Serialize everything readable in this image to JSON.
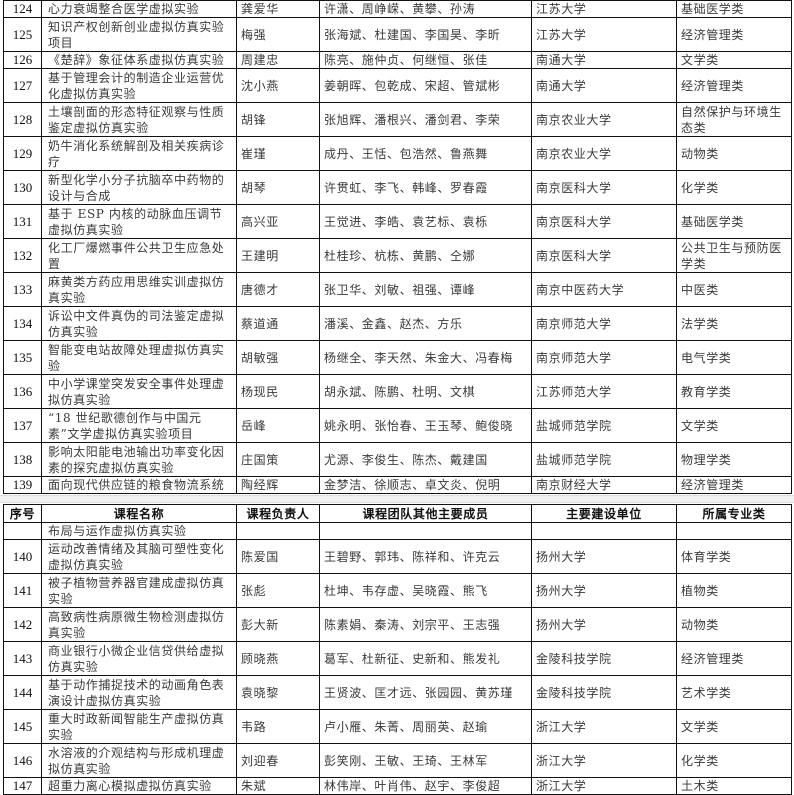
{
  "header": {
    "no": "序号",
    "name": "课程名称",
    "leader": "课程负责人",
    "members": "课程团队其他主要成员",
    "unit": "主要建设单位",
    "category": "所属专业类"
  },
  "table1": [
    {
      "no": "124",
      "name": "心力衰竭整合医学虚拟实验",
      "leader": "龚爱华",
      "members": "许潇、周峥嵘、黄攀、孙涛",
      "unit": "江苏大学",
      "category": "基础医学类"
    },
    {
      "no": "125",
      "name": "知识产权创新创业虚拟仿真实验项目",
      "leader": "梅强",
      "members": "张海斌、杜建国、李国昊、李昕",
      "unit": "江苏大学",
      "category": "经济管理类"
    },
    {
      "no": "126",
      "name": "《楚辞》象征体系虚拟仿真实验",
      "leader": "周建忠",
      "members": "陈亮、施仲贞、何继恒、张佳",
      "unit": "南通大学",
      "category": "文学类"
    },
    {
      "no": "127",
      "name": "基于管理会计的制造企业运营优化虚拟仿真实验",
      "leader": "沈小燕",
      "members": "姜朝晖、包乾成、宋超、管斌彬",
      "unit": "南通大学",
      "category": "经济管理类"
    },
    {
      "no": "128",
      "name": "土壤剖面的形态特征观察与性质鉴定虚拟仿真实验",
      "leader": "胡锋",
      "members": "张旭辉、潘根兴、潘剑君、李荣",
      "unit": "南京农业大学",
      "category": "自然保护与环境生态类"
    },
    {
      "no": "129",
      "name": "奶牛消化系统解剖及相关疾病诊疗",
      "leader": "崔瑾",
      "members": "成丹、王恬、包浩然、鲁燕舞",
      "unit": "南京农业大学",
      "category": "动物类"
    },
    {
      "no": "130",
      "name": "新型化学小分子抗脑卒中药物的设计与合成",
      "leader": "胡琴",
      "members": "许贯虹、李飞、韩峰、罗春霞",
      "unit": "南京医科大学",
      "category": "化学类"
    },
    {
      "no": "131",
      "name": "基于 ESP 内核的动脉血压调节虚拟仿真实验",
      "leader": "高兴亚",
      "members": "王觉进、李皓、袁艺标、袁栎",
      "unit": "南京医科大学",
      "category": "基础医学类"
    },
    {
      "no": "132",
      "name": "化工厂爆燃事件公共卫生应急处置",
      "leader": "王建明",
      "members": "杜桂珍、杭栋、黄鹏、仝娜",
      "unit": "南京医科大学",
      "category": "公共卫生与预防医学类"
    },
    {
      "no": "133",
      "name": "麻黄类方药应用思维实训虚拟仿真实验",
      "leader": "唐德才",
      "members": "张卫华、刘敏、祖强、谭峰",
      "unit": "南京中医药大学",
      "category": "中医类"
    },
    {
      "no": "134",
      "name": "诉讼中文件真伪的司法鉴定虚拟仿真实验",
      "leader": "蔡道通",
      "members": "潘溪、金鑫、赵杰、方乐",
      "unit": "南京师范大学",
      "category": "法学类"
    },
    {
      "no": "135",
      "name": "智能变电站故障处理虚拟仿真实验",
      "leader": "胡敏强",
      "members": "杨继全、李天然、朱金大、冯春梅",
      "unit": "南京师范大学",
      "category": "电气学类"
    },
    {
      "no": "136",
      "name": "中小学课堂突发安全事件处理虚拟仿真实验",
      "leader": "杨现民",
      "members": "胡永斌、陈鹏、杜明、文棋",
      "unit": "江苏师范大学",
      "category": "教育学类"
    },
    {
      "no": "137",
      "name": "“18 世纪歌德创作与中国元素”文学虚拟仿真实验项目",
      "leader": "岳峰",
      "members": "姚永明、张怡春、王玉琴、鲍俊晓",
      "unit": "盐城师范学院",
      "category": "文学类"
    },
    {
      "no": "138",
      "name": "影响太阳能电池输出功率变化因素的探究虚拟仿真实验",
      "leader": "庄国策",
      "members": "尤源、李俊生、陈杰、戴建国",
      "unit": "盐城师范学院",
      "category": "物理学类"
    },
    {
      "no": "139",
      "name": "面向现代供应链的粮食物流系统",
      "leader": "陶经辉",
      "members": "金梦洁、徐顺志、卓文炎、倪明",
      "unit": "南京财经大学",
      "category": "经济管理类"
    }
  ],
  "table2": [
    {
      "no": "",
      "name": "布局与运作虚拟仿真实验",
      "leader": "",
      "members": "",
      "unit": "",
      "category": ""
    },
    {
      "no": "140",
      "name": "运动改善情绪及其脑可塑性变化虚拟仿真实验",
      "leader": "陈爱国",
      "members": "王碧野、郭玮、陈祥和、许克云",
      "unit": "扬州大学",
      "category": "体育学类"
    },
    {
      "no": "141",
      "name": "被子植物营养器官建成虚拟仿真实验",
      "leader": "张彪",
      "members": "杜坤、韦存虚、吴晓霞、熊飞",
      "unit": "扬州大学",
      "category": "植物类"
    },
    {
      "no": "142",
      "name": "高致病性病原微生物检测虚拟仿真实验",
      "leader": "彭大新",
      "members": "陈素娟、秦涛、刘宗平、王志强",
      "unit": "扬州大学",
      "category": "动物类"
    },
    {
      "no": "143",
      "name": "商业银行小微企业信贷供给虚拟仿真实验",
      "leader": "顾晓燕",
      "members": "葛军、杜新征、史新和、熊发礼",
      "unit": "金陵科技学院",
      "category": "经济管理类"
    },
    {
      "no": "144",
      "name": "基于动作捕捉技术的动画角色表演设计虚拟仿真实验",
      "leader": "袁晓黎",
      "members": "王贤波、匡才远、张园园、黄苏瑾",
      "unit": "金陵科技学院",
      "category": "艺术学类"
    },
    {
      "no": "145",
      "name": "重大时政新闻智能生产虚拟仿真实验",
      "leader": "韦路",
      "members": "卢小雁、朱菁、周丽英、赵瑜",
      "unit": "浙江大学",
      "category": "文学类"
    },
    {
      "no": "146",
      "name": "水溶液的介观结构与形成机理虚拟仿真实验",
      "leader": "刘迎春",
      "members": "彭笑刚、王敏、王琦、王林军",
      "unit": "浙江大学",
      "category": "化学类"
    },
    {
      "no": "147",
      "name": "超重力离心模拟虚拟仿真实验",
      "leader": "朱斌",
      "members": "林伟岸、叶肖伟、赵宇、李俊超",
      "unit": "浙江大学",
      "category": "土木类"
    }
  ]
}
